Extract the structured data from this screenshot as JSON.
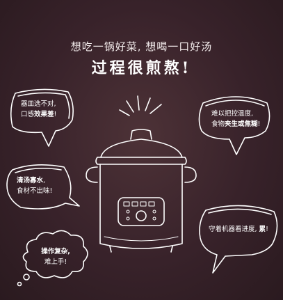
{
  "headline": "想吃一锅好菜, 想喝一口好汤",
  "subhead": "过程很煎熬!",
  "bubbles": {
    "top_left": {
      "line1": "器皿选不对,",
      "line2a": "口感",
      "line2b": "效果差",
      "line2c": "!"
    },
    "top_right": {
      "line1": "难以把控温度,",
      "line2a": "食物",
      "line2b": "夹生或焦糊",
      "line2c": "!"
    },
    "mid_left": {
      "line1a": "清汤寡水",
      "line1b": ",",
      "line2": "食材不出味!"
    },
    "bottom_left": {
      "line1": "操作复杂,",
      "line2": "难上手!"
    },
    "bottom_right": {
      "line1a": "守着机器看进度, ",
      "line1b": "累",
      "line1c": "!"
    }
  },
  "icons": {
    "cooker": "rice-cooker-icon",
    "steam": "steam-rays-icon"
  },
  "colors": {
    "background": "#38222a",
    "stroke": "#ffffff"
  }
}
